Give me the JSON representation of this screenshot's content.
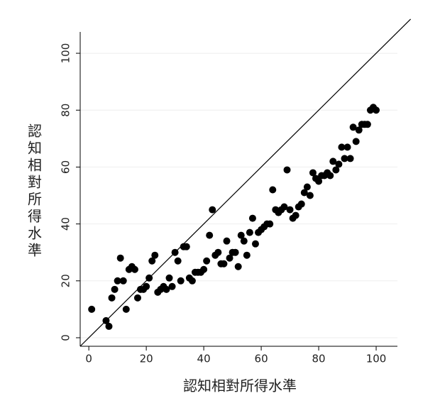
{
  "chart_data": {
    "type": "scatter",
    "x_label": "認知相對所得水準",
    "y_label": "認知相對所得水準",
    "xlim": [
      -3,
      107.4
    ],
    "ylim": [
      -3,
      107.5
    ],
    "xticks": [
      0,
      20,
      40,
      60,
      80,
      100
    ],
    "yticks": [
      0,
      20,
      40,
      60,
      80,
      100
    ],
    "grid": true,
    "color": "#000000",
    "reference_line": {
      "x": [
        -3,
        112
      ],
      "y": [
        -3,
        112
      ]
    },
    "series": [
      {
        "x": [
          1,
          6,
          7,
          8,
          9,
          10,
          11,
          12,
          13,
          14,
          15,
          16,
          17,
          18,
          19,
          20,
          21,
          22,
          23,
          24,
          25,
          26,
          27,
          28,
          29,
          30,
          31,
          32,
          33,
          34,
          35,
          36,
          37,
          38,
          39,
          40,
          41,
          42,
          43,
          44,
          45,
          46,
          47,
          48,
          49,
          50,
          51,
          52,
          53,
          54,
          55,
          56,
          57,
          58,
          59,
          60,
          61,
          62,
          63,
          64,
          65,
          66,
          67,
          68,
          69,
          70,
          71,
          72,
          73,
          74,
          75,
          76,
          77,
          78,
          79,
          80,
          81,
          82,
          83,
          84,
          85,
          86,
          87,
          88,
          89,
          90,
          91,
          92,
          93,
          94,
          95,
          96,
          97,
          98,
          99,
          100
        ],
        "values": [
          10,
          6,
          4,
          14,
          17,
          20,
          28,
          20,
          10,
          24,
          25,
          24,
          14,
          17,
          17,
          18,
          21,
          27,
          29,
          16,
          17,
          18,
          17,
          21,
          18,
          30,
          27,
          20,
          32,
          32,
          21,
          20,
          23,
          23,
          23,
          24,
          27,
          36,
          45,
          29,
          30,
          26,
          26,
          34,
          28,
          30,
          30,
          25,
          36,
          34,
          29,
          37,
          42,
          33,
          37,
          38,
          39,
          40,
          40,
          52,
          45,
          44,
          45,
          46,
          59,
          45,
          42,
          43,
          46,
          47,
          51,
          53,
          50,
          58,
          56,
          55,
          57,
          57,
          58,
          57,
          62,
          59,
          61,
          67,
          63,
          67,
          63,
          74,
          69,
          73,
          75,
          75,
          75,
          80,
          81,
          80
        ]
      }
    ]
  }
}
